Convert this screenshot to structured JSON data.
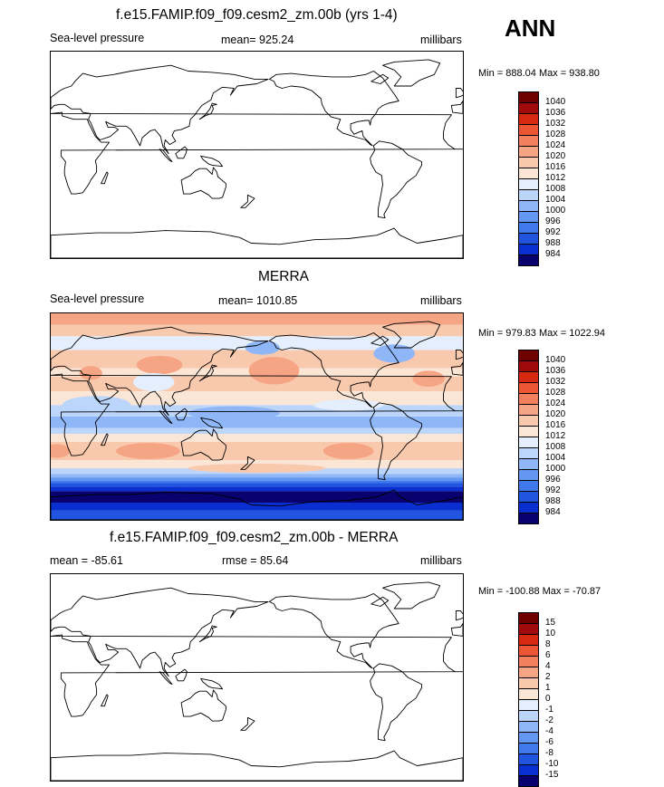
{
  "season": "ANN",
  "colors": {
    "levels": [
      "#08016e",
      "#0a2fd0",
      "#2155e0",
      "#3f79ec",
      "#6497f2",
      "#8fb6f7",
      "#bcd6fb",
      "#e4eefc",
      "#fbe6d6",
      "#f9c9ae",
      "#f6a584",
      "#f2805e",
      "#ec5635",
      "#d72812",
      "#a00a0a",
      "#6e0000"
    ],
    "coast": "#000000"
  },
  "panels": [
    {
      "id": "test",
      "title": "f.e15.FAMIP.f09_f09.cesm2_zm.00b (yrs 1-4)",
      "left_label": "Sea-level pressure",
      "center_label": "mean= 925.24",
      "right_label": "millibars",
      "minmax": "Min = 888.04 Max = 938.80",
      "colorbar_labels": [
        "1040",
        "1036",
        "1032",
        "1028",
        "1024",
        "1020",
        "1016",
        "1012",
        "1008",
        "1004",
        "1000",
        "996",
        "992",
        "988",
        "984"
      ],
      "filled": false
    },
    {
      "id": "obs",
      "title": "MERRA",
      "left_label": "Sea-level pressure",
      "center_label": "mean= 1010.85",
      "right_label": "millibars",
      "minmax": "Min = 979.83 Max = 1022.94",
      "colorbar_labels": [
        "1040",
        "1036",
        "1032",
        "1028",
        "1024",
        "1020",
        "1016",
        "1012",
        "1008",
        "1004",
        "1000",
        "996",
        "992",
        "988",
        "984"
      ],
      "filled": true
    },
    {
      "id": "diff",
      "title": "f.e15.FAMIP.f09_f09.cesm2_zm.00b - MERRA",
      "left_label": "mean = -85.61",
      "center_label": "rmse =  85.64",
      "right_label": "millibars",
      "minmax": "Min = -100.88 Max = -70.87",
      "colorbar_labels": [
        "15",
        "10",
        "8",
        "6",
        "4",
        "2",
        "1",
        "0",
        "-1",
        "-2",
        "-4",
        "-6",
        "-8",
        "-10",
        "-15"
      ],
      "filled": false
    }
  ],
  "chart_data": [
    {
      "type": "heatmap",
      "title": "f.e15.FAMIP.f09_f09.cesm2_zm.00b (yrs 1-4)",
      "variable": "Sea-level pressure",
      "units": "millibars",
      "mean": 925.24,
      "min": 888.04,
      "max": 938.8,
      "contour_levels": [
        984,
        988,
        992,
        996,
        1000,
        1004,
        1008,
        1012,
        1016,
        1020,
        1024,
        1028,
        1032,
        1036,
        1040
      ]
    },
    {
      "type": "heatmap",
      "title": "MERRA",
      "variable": "Sea-level pressure",
      "units": "millibars",
      "mean": 1010.85,
      "min": 979.83,
      "max": 1022.94,
      "contour_levels": [
        984,
        988,
        992,
        996,
        1000,
        1004,
        1008,
        1012,
        1016,
        1020,
        1024,
        1028,
        1032,
        1036,
        1040
      ]
    },
    {
      "type": "heatmap",
      "title": "f.e15.FAMIP.f09_f09.cesm2_zm.00b - MERRA",
      "units": "millibars",
      "mean": -85.61,
      "rmse": 85.64,
      "min": -100.88,
      "max": -70.87,
      "contour_levels": [
        -15,
        -10,
        -8,
        -6,
        -4,
        -2,
        -1,
        0,
        1,
        2,
        4,
        6,
        8,
        10,
        15
      ]
    }
  ]
}
